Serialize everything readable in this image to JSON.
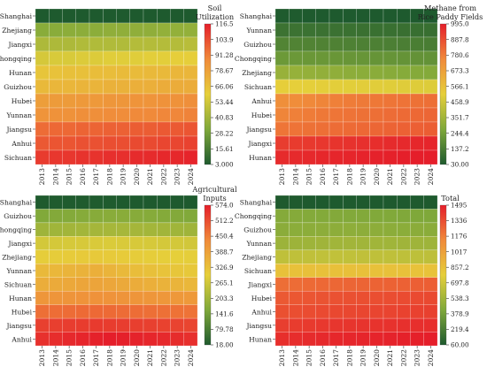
{
  "colors": {
    "low": "#1e5a2e",
    "mid_low": "#7fa83a",
    "mid": "#e6cf3a",
    "mid_high": "#f08a3a",
    "high": "#e51e2a",
    "cell_border": "#ffffff"
  },
  "chart_data": [
    {
      "type": "heatmap",
      "colorbar_title": [
        "Soil",
        "Utilization"
      ],
      "years": [
        "2013",
        "2014",
        "2015",
        "2016",
        "2017",
        "2018",
        "2019",
        "2020",
        "2021",
        "2022",
        "2023",
        "2024"
      ],
      "provinces": [
        "Shanghai",
        "Zhejiang",
        "Jiangxi",
        "Chongqing",
        "Hunan",
        "Guizhou",
        "Hubei",
        "Yunnan",
        "Jiangsu",
        "Anhui",
        "Sichuan"
      ],
      "values": [
        [
          3,
          3,
          3,
          3,
          3,
          3,
          3,
          3,
          3,
          3,
          3,
          3
        ],
        [
          34,
          34,
          35,
          35,
          35,
          36,
          36,
          36,
          36,
          37,
          37,
          37
        ],
        [
          44,
          44,
          44,
          45,
          45,
          45,
          45,
          46,
          46,
          46,
          46,
          47
        ],
        [
          55,
          56,
          56,
          57,
          57,
          58,
          58,
          58,
          59,
          59,
          60,
          60
        ],
        [
          64,
          65,
          66,
          66,
          67,
          67,
          68,
          68,
          69,
          69,
          70,
          70
        ],
        [
          69,
          70,
          70,
          71,
          71,
          72,
          72,
          73,
          73,
          74,
          74,
          74
        ],
        [
          80,
          81,
          81,
          82,
          82,
          83,
          83,
          84,
          84,
          85,
          85,
          86
        ],
        [
          84,
          85,
          85,
          86,
          86,
          87,
          87,
          88,
          88,
          89,
          89,
          90
        ],
        [
          96,
          97,
          97,
          98,
          98,
          99,
          99,
          100,
          100,
          101,
          101,
          102
        ],
        [
          101,
          102,
          102,
          103,
          103,
          104,
          104,
          105,
          105,
          106,
          106,
          107
        ],
        [
          109,
          110,
          110,
          111,
          111,
          112,
          112,
          113,
          113,
          114,
          114,
          115
        ]
      ],
      "zlim": [
        3.0,
        116.5
      ],
      "colorbar_ticks": [
        "116.5",
        "103.9",
        "91.28",
        "78.67",
        "66.06",
        "53.44",
        "40.83",
        "28.22",
        "15.61",
        "3.000"
      ]
    },
    {
      "type": "heatmap",
      "colorbar_title": [
        "Methane from",
        "Rice Paddy Fields"
      ],
      "years": [
        "2013",
        "2014",
        "2015",
        "2016",
        "2017",
        "2018",
        "2019",
        "2020",
        "2021",
        "2022",
        "2023",
        "2024"
      ],
      "provinces": [
        "Shanghai",
        "Yunnan",
        "Guizhou",
        "Chongqing",
        "Zhejiang",
        "Sichuan",
        "Anhui",
        "Hubei",
        "Jiangsu",
        "Jiangxi",
        "Hunan"
      ],
      "values": [
        [
          32,
          32,
          31,
          31,
          31,
          31,
          30,
          30,
          30,
          30,
          30,
          30
        ],
        [
          105,
          104,
          103,
          102,
          101,
          100,
          99,
          98,
          97,
          96,
          95,
          94
        ],
        [
          160,
          158,
          156,
          154,
          152,
          150,
          148,
          146,
          144,
          142,
          140,
          138
        ],
        [
          225,
          222,
          220,
          218,
          216,
          214,
          212,
          210,
          208,
          206,
          204,
          202
        ],
        [
          330,
          325,
          320,
          315,
          310,
          305,
          300,
          296,
          292,
          288,
          285,
          282
        ],
        [
          515,
          512,
          510,
          508,
          506,
          504,
          502,
          500,
          498,
          496,
          494,
          492
        ],
        [
          735,
          745,
          755,
          765,
          775,
          785,
          790,
          795,
          800,
          805,
          810,
          815
        ],
        [
          765,
          775,
          785,
          795,
          800,
          805,
          810,
          815,
          820,
          825,
          830,
          835
        ],
        [
          800,
          805,
          810,
          815,
          820,
          825,
          830,
          835,
          840,
          845,
          850,
          855
        ],
        [
          925,
          930,
          935,
          940,
          945,
          950,
          955,
          960,
          965,
          970,
          975,
          980
        ],
        [
          965,
          968,
          971,
          974,
          977,
          980,
          983,
          986,
          989,
          992,
          994,
          995
        ]
      ],
      "zlim": [
        30.0,
        995.0
      ],
      "colorbar_ticks": [
        "995.0",
        "887.8",
        "780.6",
        "673.3",
        "566.1",
        "458.9",
        "351.7",
        "244.4",
        "137.2",
        "30.00"
      ]
    },
    {
      "type": "heatmap",
      "colorbar_title": [
        "Agricultural",
        "Inputs"
      ],
      "years": [
        "2013",
        "2014",
        "2015",
        "2016",
        "2017",
        "2018",
        "2019",
        "2020",
        "2021",
        "2022",
        "2023",
        "2024"
      ],
      "provinces": [
        "Shanghai",
        "Guizhou",
        "Chongqing",
        "Jiangxi",
        "Zhejiang",
        "Yunnan",
        "Sichuan",
        "Hunan",
        "Hubei",
        "Jiangsu",
        "Anhui"
      ],
      "values": [
        [
          20,
          20,
          19,
          19,
          19,
          19,
          18,
          18,
          18,
          18,
          18,
          18
        ],
        [
          160,
          162,
          164,
          166,
          168,
          170,
          170,
          168,
          166,
          164,
          162,
          160
        ],
        [
          200,
          202,
          204,
          206,
          208,
          210,
          210,
          208,
          206,
          204,
          202,
          200
        ],
        [
          270,
          272,
          274,
          276,
          278,
          280,
          278,
          276,
          274,
          272,
          270,
          268
        ],
        [
          300,
          302,
          304,
          306,
          308,
          306,
          304,
          302,
          300,
          298,
          296,
          294
        ],
        [
          340,
          345,
          350,
          355,
          360,
          350,
          340,
          332,
          326,
          320,
          315,
          310
        ],
        [
          365,
          370,
          375,
          380,
          382,
          378,
          372,
          366,
          360,
          355,
          350,
          345
        ],
        [
          410,
          412,
          414,
          416,
          418,
          416,
          414,
          412,
          410,
          408,
          406,
          404
        ],
        [
          470,
          472,
          474,
          476,
          478,
          476,
          474,
          472,
          470,
          468,
          466,
          464
        ],
        [
          530,
          532,
          534,
          536,
          538,
          536,
          534,
          532,
          530,
          528,
          526,
          524
        ],
        [
          550,
          555,
          560,
          565,
          570,
          574,
          572,
          568,
          564,
          560,
          556,
          552
        ]
      ],
      "zlim": [
        18.0,
        574.0
      ],
      "colorbar_ticks": [
        "574.0",
        "512.2",
        "450.4",
        "388.7",
        "326.9",
        "265.1",
        "203.3",
        "141.6",
        "79.78",
        "18.00"
      ]
    },
    {
      "type": "heatmap",
      "colorbar_title": [
        "Total"
      ],
      "years": [
        "2013",
        "2014",
        "2015",
        "2016",
        "2017",
        "2018",
        "2019",
        "2020",
        "2021",
        "2022",
        "2023",
        "2024"
      ],
      "provinces": [
        "Shanghai",
        "Chongqing",
        "Guizhou",
        "Yunnan",
        "Zhejiang",
        "Sichuan",
        "Jiangxi",
        "Hubei",
        "Anhui",
        "Jiangsu",
        "Hunan"
      ],
      "values": [
        [
          62,
          62,
          61,
          61,
          61,
          61,
          60,
          60,
          60,
          60,
          60,
          60
        ],
        [
          440,
          438,
          436,
          434,
          432,
          430,
          428,
          426,
          424,
          422,
          420,
          418
        ],
        [
          460,
          462,
          464,
          466,
          468,
          470,
          468,
          466,
          464,
          462,
          460,
          458
        ],
        [
          520,
          524,
          528,
          532,
          536,
          540,
          538,
          536,
          534,
          532,
          530,
          528
        ],
        [
          640,
          642,
          644,
          646,
          648,
          646,
          644,
          642,
          640,
          638,
          636,
          634
        ],
        [
          850,
          852,
          854,
          856,
          858,
          856,
          854,
          852,
          850,
          848,
          846,
          844
        ],
        [
          1230,
          1236,
          1242,
          1248,
          1254,
          1258,
          1262,
          1266,
          1270,
          1274,
          1278,
          1282
        ],
        [
          1300,
          1306,
          1312,
          1318,
          1324,
          1328,
          1332,
          1336,
          1340,
          1344,
          1348,
          1352
        ],
        [
          1330,
          1336,
          1342,
          1348,
          1354,
          1358,
          1362,
          1366,
          1370,
          1374,
          1378,
          1382
        ],
        [
          1390,
          1396,
          1402,
          1408,
          1414,
          1418,
          1422,
          1426,
          1430,
          1434,
          1438,
          1442
        ],
        [
          1440,
          1446,
          1452,
          1458,
          1464,
          1468,
          1472,
          1476,
          1480,
          1484,
          1488,
          1495
        ]
      ],
      "zlim": [
        60.0,
        1495.0
      ],
      "colorbar_ticks": [
        "1495",
        "1336",
        "1176",
        "1017",
        "857.2",
        "697.8",
        "538.3",
        "378.9",
        "219.4",
        "60.00"
      ]
    }
  ]
}
